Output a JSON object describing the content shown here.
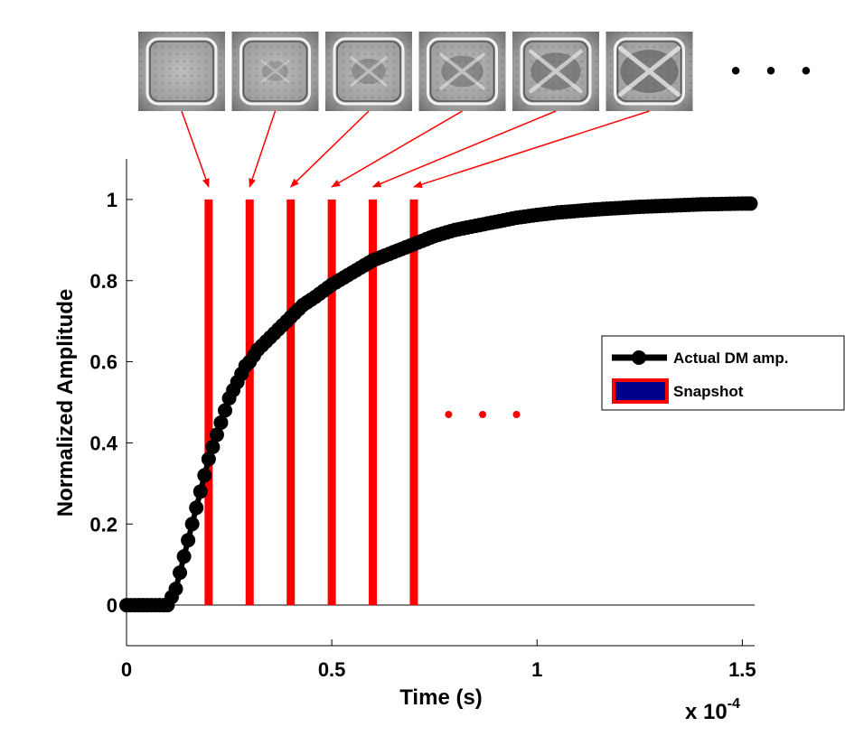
{
  "chart_data": {
    "type": "line",
    "xlabel": "Time (s)",
    "ylabel": "Normalized Amplitude",
    "x_scale_note": "x 10",
    "x_scale_exponent": "-4",
    "xlim": [
      0,
      1.53
    ],
    "ylim": [
      -0.1,
      1.1
    ],
    "xticks": [
      0,
      0.5,
      1,
      1.5
    ],
    "xtick_labels": [
      "0",
      "0.5",
      "1",
      "1.5"
    ],
    "yticks": [
      0,
      0.2,
      0.4,
      0.6,
      0.8,
      1
    ],
    "ytick_labels": [
      "0",
      "0.2",
      "0.4",
      "0.6",
      "0.8",
      "1"
    ],
    "grid": false,
    "legend_position": "right",
    "colors": {
      "curve": "#000000",
      "snapshot": "#ff0000",
      "snapshot_fill": "#00008b"
    },
    "series": [
      {
        "name": "Actual DM amp.",
        "style": "line-with-circle-markers",
        "x": [
          0.0,
          0.02,
          0.04,
          0.06,
          0.08,
          0.1,
          0.11,
          0.12,
          0.13,
          0.14,
          0.15,
          0.16,
          0.17,
          0.18,
          0.19,
          0.2,
          0.21,
          0.22,
          0.23,
          0.24,
          0.25,
          0.26,
          0.27,
          0.28,
          0.29,
          0.3,
          0.32,
          0.34,
          0.36,
          0.38,
          0.4,
          0.43,
          0.46,
          0.5,
          0.55,
          0.6,
          0.65,
          0.7,
          0.75,
          0.8,
          0.85,
          0.9,
          0.95,
          1.0,
          1.05,
          1.1,
          1.15,
          1.2,
          1.25,
          1.3,
          1.35,
          1.4,
          1.45,
          1.5,
          1.52
        ],
        "y": [
          0.0,
          0.0,
          0.0,
          0.0,
          0.0,
          0.0,
          0.02,
          0.04,
          0.08,
          0.12,
          0.16,
          0.2,
          0.24,
          0.28,
          0.32,
          0.36,
          0.39,
          0.42,
          0.45,
          0.48,
          0.51,
          0.53,
          0.55,
          0.57,
          0.59,
          0.6,
          0.63,
          0.65,
          0.67,
          0.69,
          0.71,
          0.74,
          0.76,
          0.79,
          0.82,
          0.85,
          0.87,
          0.89,
          0.91,
          0.925,
          0.935,
          0.945,
          0.955,
          0.962,
          0.968,
          0.972,
          0.976,
          0.979,
          0.982,
          0.984,
          0.986,
          0.988,
          0.989,
          0.99,
          0.99
        ]
      },
      {
        "name": "Snapshot",
        "style": "vertical-bars",
        "x": [
          0.2,
          0.3,
          0.4,
          0.5,
          0.6,
          0.7
        ],
        "y_range": [
          0,
          1
        ]
      }
    ],
    "annotations": [
      "• • •",
      "• • •"
    ]
  },
  "snapshots": {
    "count": 6,
    "icon": "deformable-mirror-surface-image"
  }
}
